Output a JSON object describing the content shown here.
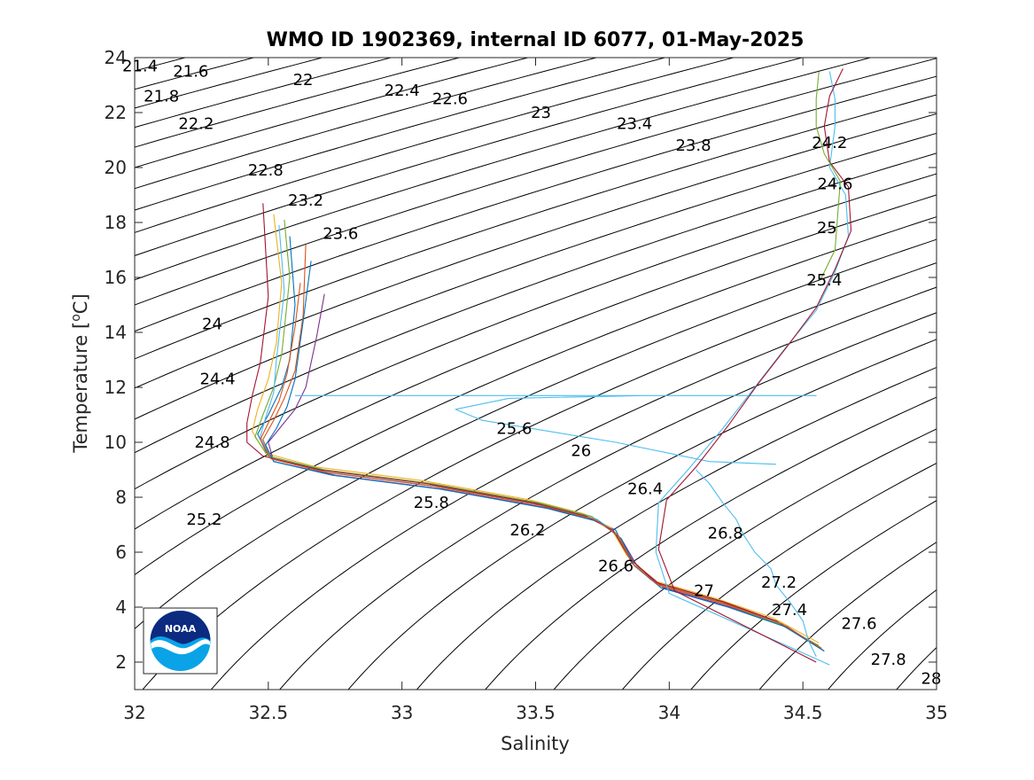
{
  "chart_data": {
    "type": "line",
    "title": "WMO ID 1902369, internal ID 6077, 01-May-2025",
    "xlabel": "Salinity",
    "ylabel": "Temperature [",
    "ylabel_sup": "o",
    "ylabel_unit": "C]",
    "xlim": [
      32,
      35
    ],
    "ylim": [
      1,
      24
    ],
    "x_ticks": [
      "32",
      "32.5",
      "33",
      "33.5",
      "34",
      "34.5",
      "35"
    ],
    "y_ticks": [
      "2",
      "4",
      "6",
      "8",
      "10",
      "12",
      "14",
      "16",
      "18",
      "20",
      "22",
      "24"
    ],
    "grid": "off",
    "legend": "none",
    "contours": {
      "quantity": "potential density anomaly",
      "levels": [
        "21.4",
        "21.6",
        "21.8",
        "22",
        "22.2",
        "22.4",
        "22.6",
        "22.8",
        "23",
        "23.2",
        "23.4",
        "23.6",
        "23.8",
        "24",
        "24.2",
        "24.4",
        "24.6",
        "24.8",
        "25",
        "25.2",
        "25.4",
        "25.6",
        "25.8",
        "26",
        "26.2",
        "26.4",
        "26.6",
        "26.8",
        "27",
        "27.2",
        "27.4",
        "27.6",
        "27.8",
        "28"
      ],
      "labels": [
        {
          "text": "21.4",
          "x": 32.02,
          "y": 23.7
        },
        {
          "text": "21.6",
          "x": 32.21,
          "y": 23.5
        },
        {
          "text": "21.8",
          "x": 32.1,
          "y": 22.6
        },
        {
          "text": "22",
          "x": 32.63,
          "y": 23.2
        },
        {
          "text": "22.2",
          "x": 32.23,
          "y": 21.6
        },
        {
          "text": "22.4",
          "x": 33.0,
          "y": 22.8
        },
        {
          "text": "22.6",
          "x": 33.18,
          "y": 22.5
        },
        {
          "text": "22.8",
          "x": 32.49,
          "y": 19.9
        },
        {
          "text": "23",
          "x": 33.52,
          "y": 22.0
        },
        {
          "text": "23.2",
          "x": 32.64,
          "y": 18.8
        },
        {
          "text": "23.4",
          "x": 33.87,
          "y": 21.6
        },
        {
          "text": "23.6",
          "x": 32.77,
          "y": 17.6
        },
        {
          "text": "23.8",
          "x": 34.09,
          "y": 20.8
        },
        {
          "text": "24",
          "x": 32.29,
          "y": 14.3
        },
        {
          "text": "24.2",
          "x": 34.6,
          "y": 20.9
        },
        {
          "text": "24.4",
          "x": 32.31,
          "y": 12.3
        },
        {
          "text": "24.6",
          "x": 34.62,
          "y": 19.4
        },
        {
          "text": "24.8",
          "x": 32.29,
          "y": 10.0
        },
        {
          "text": "25",
          "x": 34.59,
          "y": 17.8
        },
        {
          "text": "25.2",
          "x": 32.26,
          "y": 7.2
        },
        {
          "text": "25.4",
          "x": 34.58,
          "y": 15.9
        },
        {
          "text": "25.6",
          "x": 33.42,
          "y": 10.5
        },
        {
          "text": "25.8",
          "x": 33.11,
          "y": 7.8
        },
        {
          "text": "26",
          "x": 33.67,
          "y": 9.7
        },
        {
          "text": "26.2",
          "x": 33.47,
          "y": 6.8
        },
        {
          "text": "26.4",
          "x": 33.91,
          "y": 8.3
        },
        {
          "text": "26.6",
          "x": 33.8,
          "y": 5.5
        },
        {
          "text": "26.8",
          "x": 34.21,
          "y": 6.7
        },
        {
          "text": "27",
          "x": 34.13,
          "y": 4.6
        },
        {
          "text": "27.2",
          "x": 34.41,
          "y": 4.9
        },
        {
          "text": "27.4",
          "x": 34.45,
          "y": 3.9
        },
        {
          "text": "27.6",
          "x": 34.71,
          "y": 3.4
        },
        {
          "text": "27.8",
          "x": 34.82,
          "y": 2.1
        },
        {
          "text": "28",
          "x": 34.98,
          "y": 1.4
        }
      ]
    },
    "series": [
      {
        "color": "#0072BD",
        "x": [
          32.58,
          32.6,
          32.58,
          32.55,
          32.5,
          32.46,
          32.5,
          32.7,
          33.1,
          33.5,
          33.7,
          33.8,
          33.85,
          33.95,
          34.2,
          34.4,
          34.55
        ],
        "y": [
          17.5,
          15.0,
          13.0,
          12.0,
          11.0,
          10.3,
          9.5,
          9.0,
          8.5,
          7.8,
          7.3,
          6.8,
          5.8,
          4.9,
          4.2,
          3.5,
          2.6
        ]
      },
      {
        "color": "#D95319",
        "x": [
          32.64,
          32.63,
          32.6,
          32.56,
          32.52,
          32.48,
          32.51,
          32.72,
          33.12,
          33.52,
          33.72,
          33.81,
          33.87,
          33.97,
          34.22,
          34.42,
          34.57
        ],
        "y": [
          17.2,
          14.6,
          12.6,
          11.6,
          10.8,
          10.1,
          9.4,
          8.9,
          8.4,
          7.7,
          7.2,
          6.6,
          5.6,
          4.8,
          4.1,
          3.4,
          2.5
        ]
      },
      {
        "color": "#EDB120",
        "x": [
          32.52,
          32.55,
          32.53,
          32.5,
          32.46,
          32.44,
          32.49,
          32.68,
          33.08,
          33.48,
          33.68,
          33.78,
          33.84,
          33.93,
          34.18,
          34.39,
          34.56
        ],
        "y": [
          18.3,
          15.8,
          13.6,
          12.3,
          11.2,
          10.4,
          9.6,
          9.1,
          8.6,
          7.9,
          7.4,
          6.9,
          5.9,
          5.0,
          4.3,
          3.6,
          2.7
        ]
      },
      {
        "color": "#7E2F8E",
        "x": [
          32.71,
          32.68,
          32.64,
          32.6,
          32.55,
          32.5,
          32.52,
          32.75,
          33.15,
          33.55,
          33.74,
          33.82,
          33.88,
          33.98,
          34.23,
          34.44,
          34.58
        ],
        "y": [
          15.4,
          13.8,
          12.0,
          11.2,
          10.6,
          10.0,
          9.3,
          8.8,
          8.3,
          7.6,
          7.1,
          6.5,
          5.5,
          4.7,
          4.0,
          3.3,
          2.4
        ]
      },
      {
        "color": "#77AC30",
        "x": [
          32.56,
          32.58,
          32.55,
          32.52,
          32.48,
          32.45,
          32.5,
          32.71,
          33.11,
          33.51,
          33.71,
          33.8,
          33.86,
          33.96,
          34.21,
          34.41,
          34.56
        ],
        "y": [
          18.1,
          16.0,
          13.2,
          12.0,
          11.0,
          10.2,
          9.5,
          9.0,
          8.5,
          7.8,
          7.3,
          6.7,
          5.7,
          4.8,
          4.1,
          3.4,
          2.6
        ]
      },
      {
        "color": "#4DBEEE",
        "x": [
          32.54,
          32.56,
          32.53,
          32.52,
          32.49,
          32.47,
          32.51,
          32.73,
          33.13,
          33.53,
          33.73,
          33.81,
          33.86,
          33.96,
          34.21,
          34.42,
          34.57
        ],
        "y": [
          17.9,
          15.5,
          13.0,
          11.8,
          10.9,
          10.2,
          9.4,
          8.9,
          8.4,
          7.7,
          7.2,
          6.6,
          5.6,
          4.8,
          4.1,
          3.4,
          2.5
        ]
      },
      {
        "color": "#A2142F",
        "x": [
          32.48,
          32.5,
          32.47,
          32.44,
          32.42,
          32.42,
          32.48,
          32.69,
          33.09,
          33.49,
          33.69,
          33.79,
          33.85,
          33.95,
          34.2,
          34.4,
          34.55
        ],
        "y": [
          18.7,
          15.3,
          12.9,
          11.7,
          10.7,
          10.0,
          9.5,
          9.0,
          8.5,
          7.8,
          7.3,
          6.8,
          5.8,
          4.9,
          4.2,
          3.5,
          2.6
        ]
      },
      {
        "color": "#0072BD",
        "x": [
          32.66,
          32.63,
          32.6,
          32.57,
          32.53,
          32.49,
          32.52,
          32.74,
          33.14,
          33.54,
          33.74,
          33.82,
          33.87,
          33.97,
          34.22,
          34.43,
          34.58
        ],
        "y": [
          16.6,
          14.4,
          12.3,
          11.3,
          10.5,
          9.9,
          9.3,
          8.8,
          8.3,
          7.6,
          7.1,
          6.5,
          5.5,
          4.7,
          4.0,
          3.3,
          2.4
        ]
      },
      {
        "color": "#D95319",
        "x": [
          32.62,
          32.6,
          32.57,
          32.54,
          32.5,
          32.47,
          32.51,
          32.72,
          33.12,
          33.52,
          33.72,
          33.81,
          33.86,
          33.96,
          34.21,
          34.42,
          34.57
        ],
        "y": [
          15.8,
          14.2,
          12.5,
          11.5,
          10.7,
          10.1,
          9.4,
          8.9,
          8.4,
          7.7,
          7.2,
          6.6,
          5.6,
          4.8,
          4.1,
          3.4,
          2.5
        ]
      },
      {
        "color": "#4DBEEE",
        "x": [
          32.6,
          32.62,
          32.61,
          33.0,
          33.6,
          34.0,
          34.55,
          33.9,
          33.4,
          33.2,
          33.3,
          33.8,
          34.15,
          34.4
        ],
        "y": [
          11.7,
          11.7,
          11.7,
          11.7,
          11.7,
          11.7,
          11.7,
          11.7,
          11.6,
          11.2,
          10.8,
          10.0,
          9.3,
          9.2
        ]
      },
      {
        "color": "#4DBEEE",
        "x": [
          34.1,
          34.15,
          34.2,
          34.25,
          34.28,
          34.32,
          34.38,
          34.4,
          34.45,
          34.5,
          34.52,
          34.55
        ],
        "y": [
          9.0,
          8.5,
          7.8,
          7.2,
          6.6,
          6.0,
          5.4,
          4.8,
          4.2,
          3.5,
          2.8,
          2.2
        ]
      },
      {
        "color": "#4DBEEE",
        "x": [
          34.6,
          34.62,
          34.62,
          34.6,
          34.66,
          34.67,
          34.62,
          34.55,
          34.44,
          34.32,
          34.2,
          34.07,
          33.96,
          33.95,
          34.0,
          34.6
        ],
        "y": [
          23.5,
          22.5,
          21.5,
          20.0,
          19.0,
          17.5,
          16.2,
          14.8,
          13.5,
          12.0,
          10.5,
          9.0,
          7.8,
          6.0,
          4.5,
          1.9
        ]
      },
      {
        "color": "#A2142F",
        "x": [
          34.65,
          34.6,
          34.58,
          34.6,
          34.67,
          34.68,
          34.62,
          34.55,
          34.45,
          34.33,
          34.22,
          34.1,
          33.99,
          33.96,
          34.02,
          34.55
        ],
        "y": [
          23.6,
          22.6,
          21.5,
          20.2,
          19.3,
          17.7,
          16.3,
          14.9,
          13.6,
          12.1,
          10.6,
          9.1,
          7.9,
          6.1,
          4.6,
          2.0
        ]
      },
      {
        "color": "#77AC30",
        "x": [
          34.56,
          34.55,
          34.55,
          34.58,
          34.64,
          34.62,
          34.57
        ],
        "y": [
          23.5,
          22.5,
          21.5,
          20.5,
          19.5,
          17.0,
          16.0
        ]
      }
    ]
  }
}
